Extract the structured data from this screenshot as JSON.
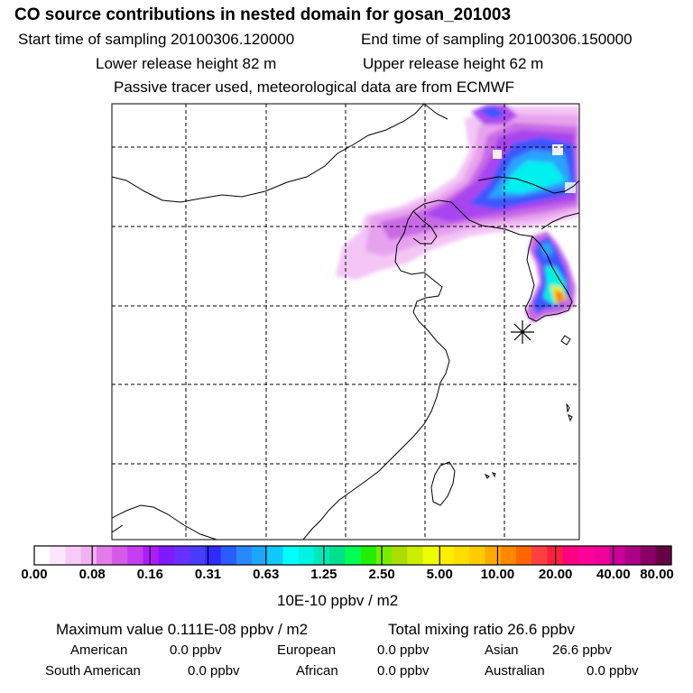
{
  "header": {
    "title": "CO  source contributions in nested domain for gosan_201003",
    "start_label": "Start time of sampling 20100306.120000",
    "end_label": "End time of sampling 20100306.150000",
    "lower_label": "Lower release height   82 m",
    "upper_label": "Upper release height   62 m",
    "note": "Passive tracer used, meteorological data are from ECMWF"
  },
  "colorbar": {
    "unit_label": "10E-10 ppbv / m2",
    "tick_labels": [
      "0.00",
      "0.08",
      "0.16",
      "0.31",
      "0.63",
      "1.25",
      "2.50",
      "5.00",
      "10.00",
      "20.00",
      "40.00",
      "80.00"
    ],
    "colors": [
      "#ffffff",
      "#fbe6fb",
      "#f6ccf6",
      "#f0b2f2",
      "#e37be8",
      "#d65ae8",
      "#c53df0",
      "#b01aff",
      "#7f1aff",
      "#6a30ff",
      "#4a3cff",
      "#2f2aff",
      "#2a5cff",
      "#2a88ff",
      "#1aa7ff",
      "#11c8ff",
      "#00ffff",
      "#00f2e0",
      "#00eab8",
      "#00e08a",
      "#00ff55",
      "#22ee00",
      "#77ee00",
      "#aadd00",
      "#ccee00",
      "#eeff00",
      "#ffee00",
      "#ffdd00",
      "#ffcc00",
      "#ffaa00",
      "#ff8800",
      "#ff6600",
      "#ff4040",
      "#ff2040",
      "#ff0080",
      "#ff0099",
      "#ee0099",
      "#cc0099",
      "#aa0088",
      "#880066",
      "#660044"
    ]
  },
  "stats": {
    "max_label": "Maximum value  0.111E-08 ppbv / m2",
    "total_label": "Total mixing ratio      26.6 ppbv",
    "regions": [
      {
        "name": "American",
        "value": "0.0 ppbv"
      },
      {
        "name": "European",
        "value": "0.0 ppbv"
      },
      {
        "name": "Asian",
        "value": "26.6 ppbv"
      },
      {
        "name": "South American",
        "value": "0.0 ppbv"
      },
      {
        "name": "African",
        "value": "0.0 ppbv"
      },
      {
        "name": "Australian",
        "value": "0.0 ppbv"
      }
    ]
  },
  "map": {
    "release_marker": "star-icon"
  }
}
